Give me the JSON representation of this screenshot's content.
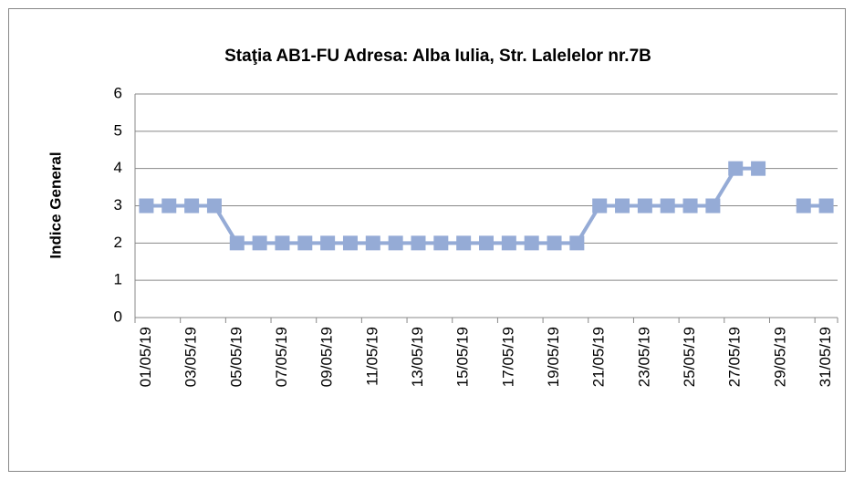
{
  "chart_data": {
    "type": "line",
    "title": "Staţia AB1-FU  Adresa: Alba Iulia, Str. Lalelelor nr.7B",
    "y_label": "Indice General",
    "categories": [
      "01/05/19",
      null,
      "03/05/19",
      null,
      "05/05/19",
      null,
      "07/05/19",
      null,
      "09/05/19",
      null,
      "11/05/19",
      null,
      "13/05/19",
      null,
      "15/05/19",
      null,
      "17/05/19",
      null,
      "19/05/19",
      null,
      "21/05/19",
      null,
      "23/05/19",
      null,
      "25/05/19",
      null,
      "27/05/19",
      null,
      "29/05/19",
      null,
      "31/05/19"
    ],
    "series": [
      {
        "name": "Indice General",
        "color": "#95abd6",
        "values": [
          3,
          3,
          3,
          3,
          2,
          2,
          2,
          2,
          2,
          2,
          2,
          2,
          2,
          2,
          2,
          2,
          2,
          2,
          2,
          2,
          3,
          3,
          3,
          3,
          3,
          3,
          4,
          4,
          null,
          3,
          3
        ]
      }
    ],
    "ylim": [
      0,
      6
    ],
    "yticks": [
      0,
      1,
      2,
      3,
      4,
      5,
      6
    ],
    "grid": true
  }
}
